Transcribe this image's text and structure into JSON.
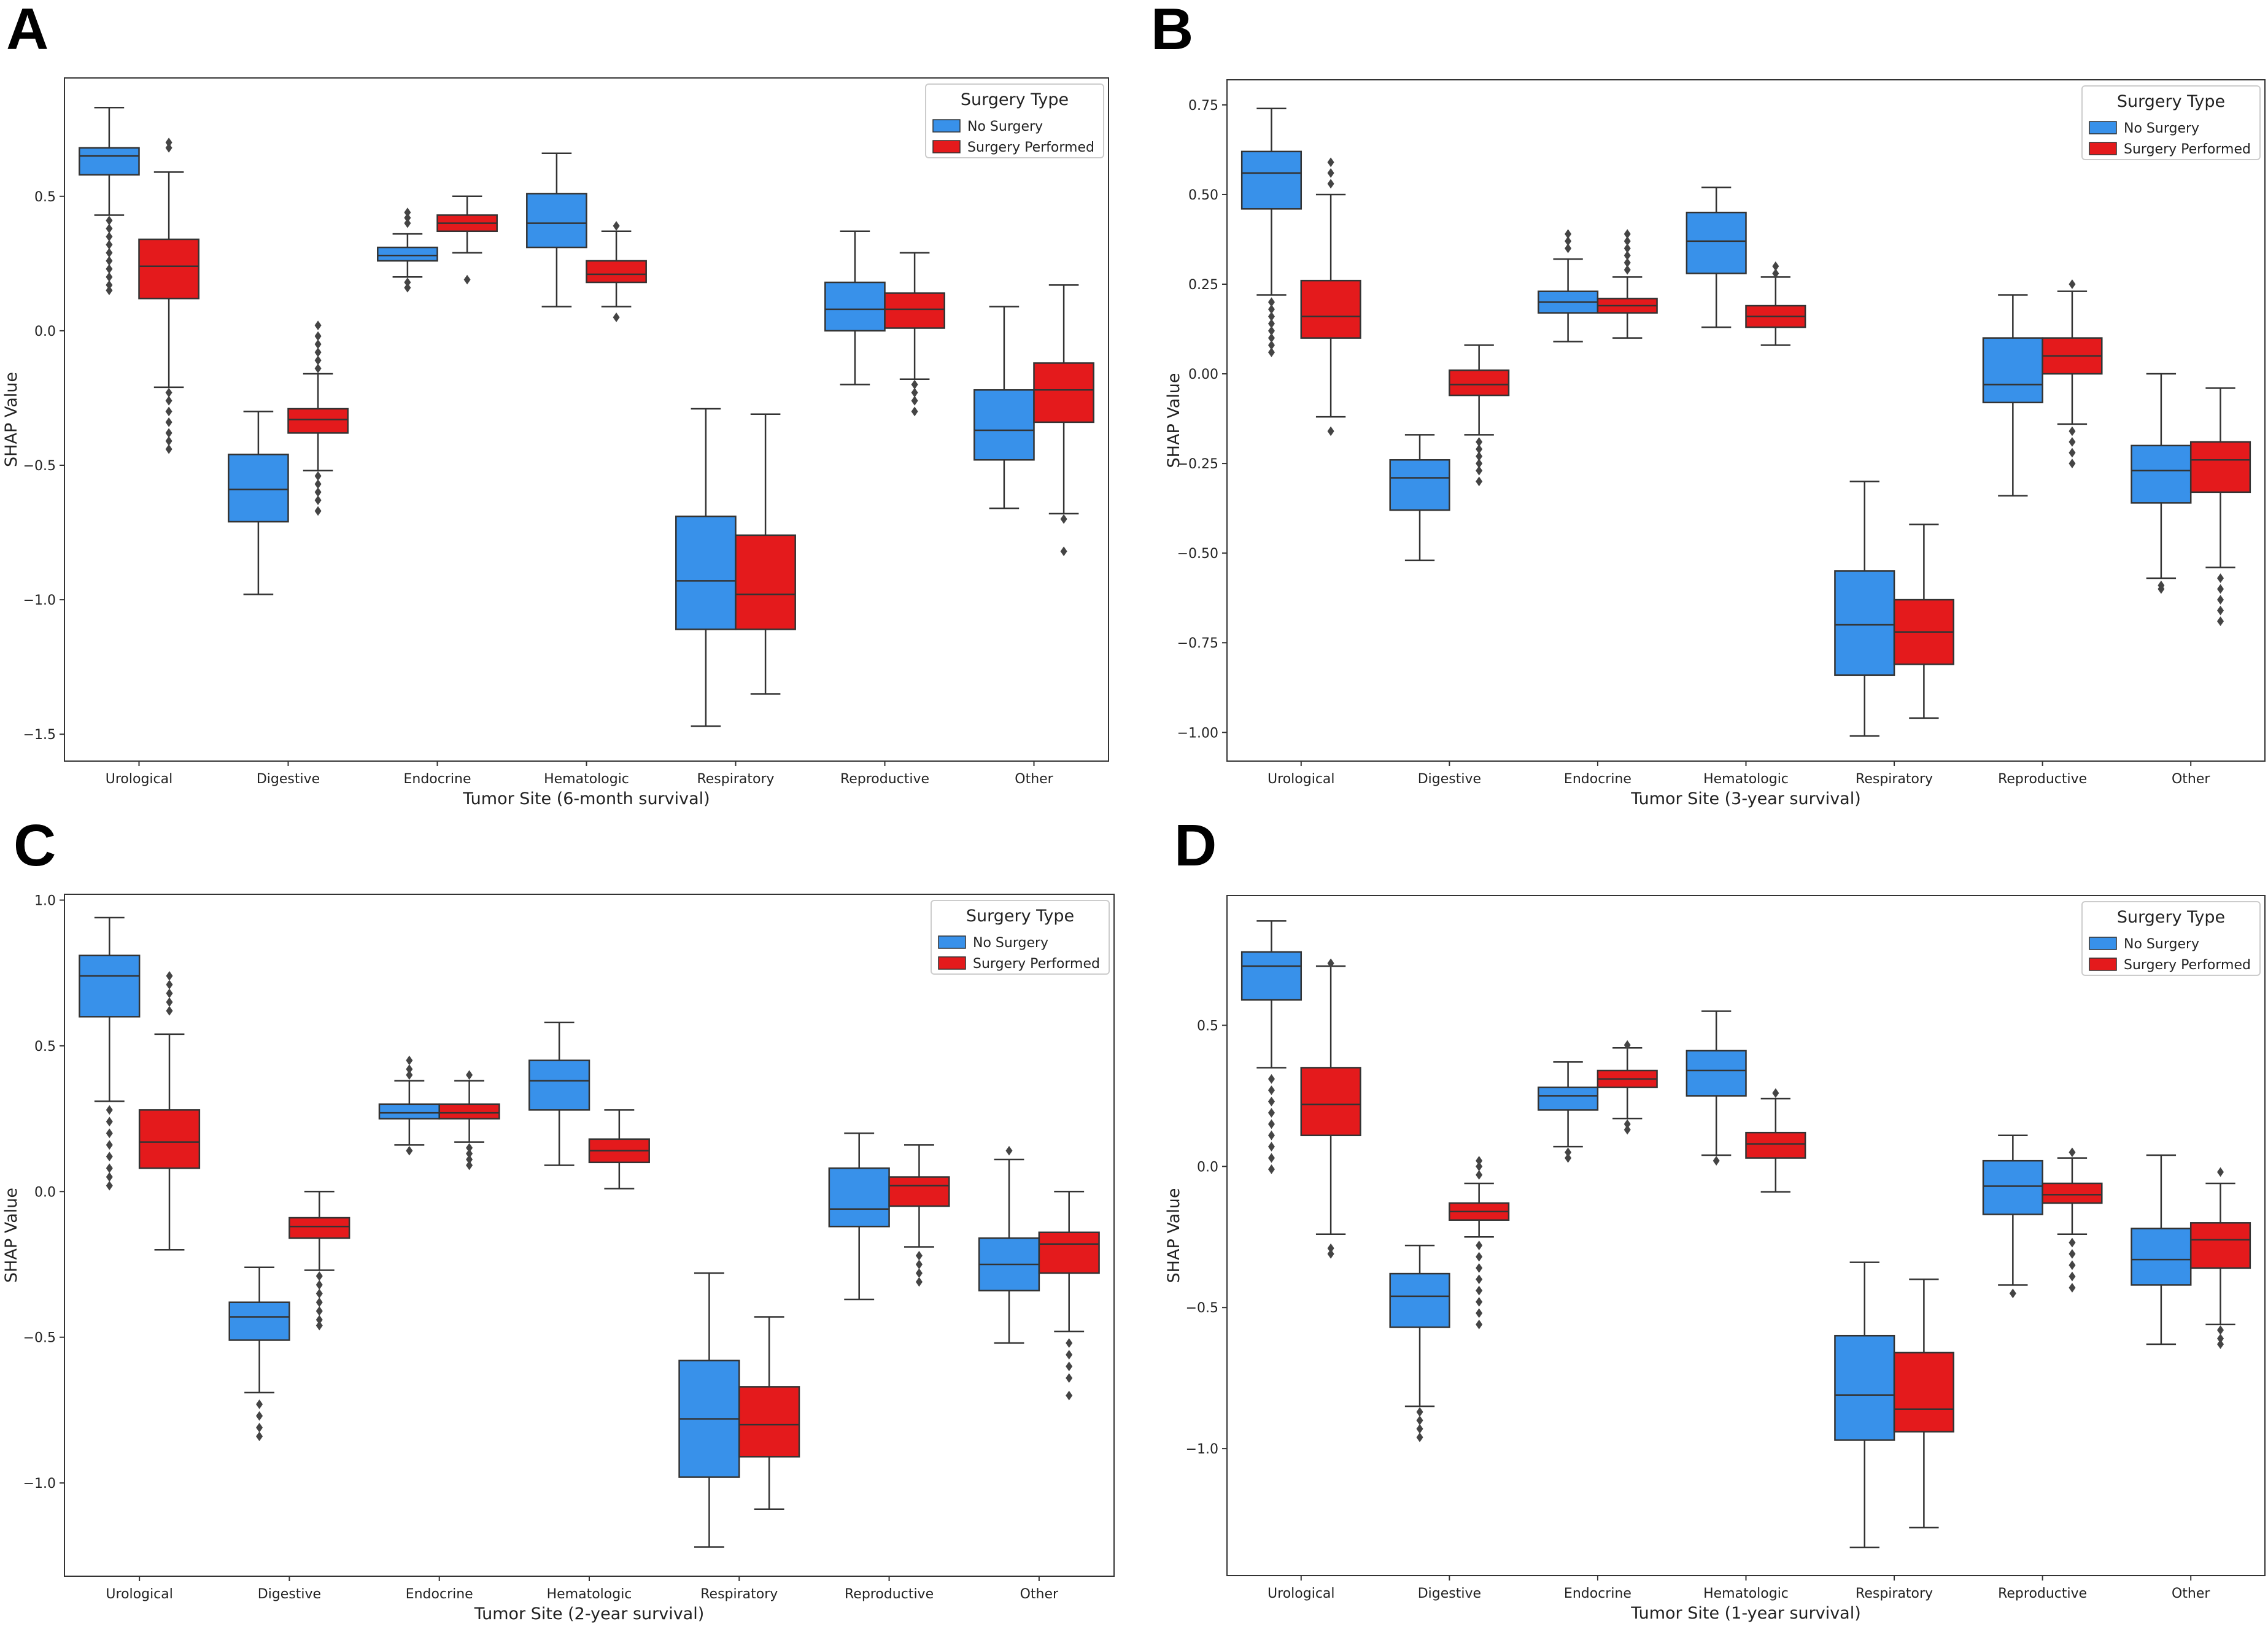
{
  "colors": {
    "no_surgery": "#3891ea",
    "surgery_performed": "#e41a1c",
    "line": "#333333",
    "frame": "#333333"
  },
  "chart_data": [
    {
      "panel": "A",
      "type": "box",
      "xlabel": "Tumor Site (6-month survival)",
      "ylabel": "SHAP Value",
      "ylim": [
        -1.6,
        0.94
      ],
      "yticks": [
        0.5,
        0.0,
        -0.5,
        -1.0,
        -1.5
      ],
      "ytick_labels": [
        "0.5",
        "0.0",
        "−0.5",
        "−1.0",
        "−1.5"
      ],
      "categories": [
        "Urological",
        "Digestive",
        "Endocrine",
        "Hematologic",
        "Respiratory",
        "Reproductive",
        "Other"
      ],
      "legend": {
        "title": "Surgery Type",
        "entries": [
          "No Surgery",
          "Surgery Performed"
        ]
      },
      "series": [
        {
          "name": "No Surgery",
          "boxes": [
            {
              "whislo": 0.43,
              "q1": 0.58,
              "med": 0.65,
              "q3": 0.68,
              "whishi": 0.83,
              "fliers": [
                0.41,
                0.38,
                0.35,
                0.32,
                0.29,
                0.26,
                0.23,
                0.2,
                0.17,
                0.15
              ]
            },
            {
              "whislo": -0.98,
              "q1": -0.71,
              "med": -0.59,
              "q3": -0.46,
              "whishi": -0.3,
              "fliers": []
            },
            {
              "whislo": 0.2,
              "q1": 0.26,
              "med": 0.28,
              "q3": 0.31,
              "whishi": 0.36,
              "fliers": [
                0.44,
                0.42,
                0.4,
                0.18,
                0.16
              ]
            },
            {
              "whislo": 0.09,
              "q1": 0.31,
              "med": 0.4,
              "q3": 0.51,
              "whishi": 0.66,
              "fliers": []
            },
            {
              "whislo": -1.47,
              "q1": -1.11,
              "med": -0.93,
              "q3": -0.69,
              "whishi": -0.29,
              "fliers": []
            },
            {
              "whislo": -0.2,
              "q1": 0.0,
              "med": 0.08,
              "q3": 0.18,
              "whishi": 0.37,
              "fliers": []
            },
            {
              "whislo": -0.66,
              "q1": -0.48,
              "med": -0.37,
              "q3": -0.22,
              "whishi": 0.09,
              "fliers": []
            }
          ]
        },
        {
          "name": "Surgery Performed",
          "boxes": [
            {
              "whislo": -0.21,
              "q1": 0.12,
              "med": 0.24,
              "q3": 0.34,
              "whishi": 0.59,
              "fliers": [
                0.7,
                0.68,
                -0.23,
                -0.26,
                -0.3,
                -0.34,
                -0.38,
                -0.41,
                -0.44
              ]
            },
            {
              "whislo": -0.52,
              "q1": -0.38,
              "med": -0.33,
              "q3": -0.29,
              "whishi": -0.16,
              "fliers": [
                -0.14,
                -0.11,
                -0.08,
                -0.05,
                -0.02,
                0.02,
                -0.54,
                -0.57,
                -0.6,
                -0.63,
                -0.67
              ]
            },
            {
              "whislo": 0.29,
              "q1": 0.37,
              "med": 0.4,
              "q3": 0.43,
              "whishi": 0.5,
              "fliers": [
                0.19
              ]
            },
            {
              "whislo": 0.09,
              "q1": 0.18,
              "med": 0.21,
              "q3": 0.26,
              "whishi": 0.37,
              "fliers": [
                0.39,
                0.05
              ]
            },
            {
              "whislo": -1.35,
              "q1": -1.11,
              "med": -0.98,
              "q3": -0.76,
              "whishi": -0.31,
              "fliers": []
            },
            {
              "whislo": -0.18,
              "q1": 0.01,
              "med": 0.08,
              "q3": 0.14,
              "whishi": 0.29,
              "fliers": [
                -0.2,
                -0.23,
                -0.26,
                -0.3
              ]
            },
            {
              "whislo": -0.68,
              "q1": -0.34,
              "med": -0.22,
              "q3": -0.12,
              "whishi": 0.17,
              "fliers": [
                -0.7,
                -0.82
              ]
            }
          ]
        }
      ]
    },
    {
      "panel": "B",
      "type": "box",
      "xlabel": "Tumor Site (3-year survival)",
      "ylabel": "SHAP Value",
      "ylim": [
        -1.08,
        0.82
      ],
      "yticks": [
        0.75,
        0.5,
        0.25,
        0.0,
        -0.25,
        -0.5,
        -0.75,
        -1.0
      ],
      "ytick_labels": [
        "0.75",
        "0.50",
        "0.25",
        "0.00",
        "−0.25",
        "−0.50",
        "−0.75",
        "−1.00"
      ],
      "categories": [
        "Urological",
        "Digestive",
        "Endocrine",
        "Hematologic",
        "Respiratory",
        "Reproductive",
        "Other"
      ],
      "legend": {
        "title": "Surgery Type",
        "entries": [
          "No Surgery",
          "Surgery Performed"
        ]
      },
      "series": [
        {
          "name": "No Surgery",
          "boxes": [
            {
              "whislo": 0.22,
              "q1": 0.46,
              "med": 0.56,
              "q3": 0.62,
              "whishi": 0.74,
              "fliers": [
                0.2,
                0.18,
                0.16,
                0.14,
                0.12,
                0.1,
                0.08,
                0.06
              ]
            },
            {
              "whislo": -0.52,
              "q1": -0.38,
              "med": -0.29,
              "q3": -0.24,
              "whishi": -0.17,
              "fliers": []
            },
            {
              "whislo": 0.09,
              "q1": 0.17,
              "med": 0.2,
              "q3": 0.23,
              "whishi": 0.32,
              "fliers": [
                0.39,
                0.37,
                0.35
              ]
            },
            {
              "whislo": 0.13,
              "q1": 0.28,
              "med": 0.37,
              "q3": 0.45,
              "whishi": 0.52,
              "fliers": []
            },
            {
              "whislo": -1.01,
              "q1": -0.84,
              "med": -0.7,
              "q3": -0.55,
              "whishi": -0.3,
              "fliers": []
            },
            {
              "whislo": -0.34,
              "q1": -0.08,
              "med": -0.03,
              "q3": 0.1,
              "whishi": 0.22,
              "fliers": []
            },
            {
              "whislo": -0.57,
              "q1": -0.36,
              "med": -0.27,
              "q3": -0.2,
              "whishi": 0.0,
              "fliers": [
                -0.59,
                -0.6
              ]
            }
          ]
        },
        {
          "name": "Surgery Performed",
          "boxes": [
            {
              "whislo": -0.12,
              "q1": 0.1,
              "med": 0.16,
              "q3": 0.26,
              "whishi": 0.5,
              "fliers": [
                0.59,
                0.56,
                0.53,
                -0.16
              ]
            },
            {
              "whislo": -0.17,
              "q1": -0.06,
              "med": -0.03,
              "q3": 0.01,
              "whishi": 0.08,
              "fliers": [
                -0.19,
                -0.21,
                -0.23,
                -0.25,
                -0.27,
                -0.3
              ]
            },
            {
              "whislo": 0.1,
              "q1": 0.17,
              "med": 0.19,
              "q3": 0.21,
              "whishi": 0.27,
              "fliers": [
                0.39,
                0.37,
                0.35,
                0.33,
                0.31,
                0.29
              ]
            },
            {
              "whislo": 0.08,
              "q1": 0.13,
              "med": 0.16,
              "q3": 0.19,
              "whishi": 0.27,
              "fliers": [
                0.3,
                0.28
              ]
            },
            {
              "whislo": -0.96,
              "q1": -0.81,
              "med": -0.72,
              "q3": -0.63,
              "whishi": -0.42,
              "fliers": []
            },
            {
              "whislo": -0.14,
              "q1": 0.0,
              "med": 0.05,
              "q3": 0.1,
              "whishi": 0.23,
              "fliers": [
                0.25,
                -0.16,
                -0.19,
                -0.22,
                -0.25
              ]
            },
            {
              "whislo": -0.54,
              "q1": -0.33,
              "med": -0.24,
              "q3": -0.19,
              "whishi": -0.04,
              "fliers": [
                -0.57,
                -0.6,
                -0.63,
                -0.66,
                -0.69
              ]
            }
          ]
        }
      ]
    },
    {
      "panel": "C",
      "type": "box",
      "xlabel": "Tumor Site (2-year survival)",
      "ylabel": "SHAP Value",
      "ylim": [
        -1.32,
        1.02
      ],
      "yticks": [
        1.0,
        0.5,
        0.0,
        -0.5,
        -1.0
      ],
      "ytick_labels": [
        "1.0",
        "0.5",
        "0.0",
        "−0.5",
        "−1.0"
      ],
      "categories": [
        "Urological",
        "Digestive",
        "Endocrine",
        "Hematologic",
        "Respiratory",
        "Reproductive",
        "Other"
      ],
      "legend": {
        "title": "Surgery Type",
        "entries": [
          "No Surgery",
          "Surgery Performed"
        ]
      },
      "series": [
        {
          "name": "No Surgery",
          "boxes": [
            {
              "whislo": 0.31,
              "q1": 0.6,
              "med": 0.74,
              "q3": 0.81,
              "whishi": 0.94,
              "fliers": [
                0.28,
                0.24,
                0.2,
                0.16,
                0.12,
                0.08,
                0.05,
                0.02
              ]
            },
            {
              "whislo": -0.69,
              "q1": -0.51,
              "med": -0.43,
              "q3": -0.38,
              "whishi": -0.26,
              "fliers": [
                -0.73,
                -0.77,
                -0.81,
                -0.84
              ]
            },
            {
              "whislo": 0.16,
              "q1": 0.25,
              "med": 0.27,
              "q3": 0.3,
              "whishi": 0.38,
              "fliers": [
                0.45,
                0.42,
                0.4,
                0.14
              ]
            },
            {
              "whislo": 0.09,
              "q1": 0.28,
              "med": 0.38,
              "q3": 0.45,
              "whishi": 0.58,
              "fliers": []
            },
            {
              "whislo": -1.22,
              "q1": -0.98,
              "med": -0.78,
              "q3": -0.58,
              "whishi": -0.28,
              "fliers": []
            },
            {
              "whislo": -0.37,
              "q1": -0.12,
              "med": -0.06,
              "q3": 0.08,
              "whishi": 0.2,
              "fliers": []
            },
            {
              "whislo": -0.52,
              "q1": -0.34,
              "med": -0.25,
              "q3": -0.16,
              "whishi": 0.11,
              "fliers": [
                0.14
              ]
            }
          ]
        },
        {
          "name": "Surgery Performed",
          "boxes": [
            {
              "whislo": -0.2,
              "q1": 0.08,
              "med": 0.17,
              "q3": 0.28,
              "whishi": 0.54,
              "fliers": [
                0.74,
                0.71,
                0.68,
                0.65,
                0.62
              ]
            },
            {
              "whislo": -0.27,
              "q1": -0.16,
              "med": -0.12,
              "q3": -0.09,
              "whishi": 0.0,
              "fliers": [
                -0.29,
                -0.32,
                -0.35,
                -0.38,
                -0.41,
                -0.44,
                -0.46
              ]
            },
            {
              "whislo": 0.17,
              "q1": 0.25,
              "med": 0.27,
              "q3": 0.3,
              "whishi": 0.38,
              "fliers": [
                0.4,
                0.15,
                0.13,
                0.11,
                0.09
              ]
            },
            {
              "whislo": 0.01,
              "q1": 0.1,
              "med": 0.14,
              "q3": 0.18,
              "whishi": 0.28,
              "fliers": []
            },
            {
              "whislo": -1.09,
              "q1": -0.91,
              "med": -0.8,
              "q3": -0.67,
              "whishi": -0.43,
              "fliers": []
            },
            {
              "whislo": -0.19,
              "q1": -0.05,
              "med": 0.02,
              "q3": 0.05,
              "whishi": 0.16,
              "fliers": [
                -0.22,
                -0.25,
                -0.28,
                -0.31
              ]
            },
            {
              "whislo": -0.48,
              "q1": -0.28,
              "med": -0.18,
              "q3": -0.14,
              "whishi": 0.0,
              "fliers": [
                -0.52,
                -0.56,
                -0.6,
                -0.64,
                -0.7
              ]
            }
          ]
        }
      ]
    },
    {
      "panel": "D",
      "type": "box",
      "xlabel": "Tumor Site (1-year survival)",
      "ylabel": "SHAP Value",
      "ylim": [
        -1.45,
        0.96
      ],
      "yticks": [
        0.5,
        0.0,
        -0.5,
        -1.0
      ],
      "ytick_labels": [
        "0.5",
        "0.0",
        "−0.5",
        "−1.0"
      ],
      "categories": [
        "Urological",
        "Digestive",
        "Endocrine",
        "Hematologic",
        "Respiratory",
        "Reproductive",
        "Other"
      ],
      "legend": {
        "title": "Surgery Type",
        "entries": [
          "No Surgery",
          "Surgery Performed"
        ]
      },
      "series": [
        {
          "name": "No Surgery",
          "boxes": [
            {
              "whislo": 0.35,
              "q1": 0.59,
              "med": 0.71,
              "q3": 0.76,
              "whishi": 0.87,
              "fliers": [
                0.31,
                0.27,
                0.23,
                0.19,
                0.15,
                0.11,
                0.07,
                0.03,
                -0.01
              ]
            },
            {
              "whislo": -0.85,
              "q1": -0.57,
              "med": -0.46,
              "q3": -0.38,
              "whishi": -0.28,
              "fliers": [
                -0.87,
                -0.9,
                -0.93,
                -0.96
              ]
            },
            {
              "whislo": 0.07,
              "q1": 0.2,
              "med": 0.25,
              "q3": 0.28,
              "whishi": 0.37,
              "fliers": [
                0.05,
                0.03
              ]
            },
            {
              "whislo": 0.04,
              "q1": 0.25,
              "med": 0.34,
              "q3": 0.41,
              "whishi": 0.55,
              "fliers": [
                0.02
              ]
            },
            {
              "whislo": -1.35,
              "q1": -0.97,
              "med": -0.81,
              "q3": -0.6,
              "whishi": -0.34,
              "fliers": []
            },
            {
              "whislo": -0.42,
              "q1": -0.17,
              "med": -0.07,
              "q3": 0.02,
              "whishi": 0.11,
              "fliers": [
                -0.45
              ]
            },
            {
              "whislo": -0.63,
              "q1": -0.42,
              "med": -0.33,
              "q3": -0.22,
              "whishi": 0.04,
              "fliers": []
            }
          ]
        },
        {
          "name": "Surgery Performed",
          "boxes": [
            {
              "whislo": -0.24,
              "q1": 0.11,
              "med": 0.22,
              "q3": 0.35,
              "whishi": 0.71,
              "fliers": [
                0.72,
                -0.29,
                -0.31
              ]
            },
            {
              "whislo": -0.25,
              "q1": -0.19,
              "med": -0.16,
              "q3": -0.13,
              "whishi": -0.06,
              "fliers": [
                -0.03,
                0.0,
                0.02,
                -0.28,
                -0.32,
                -0.36,
                -0.4,
                -0.44,
                -0.48,
                -0.52,
                -0.56
              ]
            },
            {
              "whislo": 0.17,
              "q1": 0.28,
              "med": 0.31,
              "q3": 0.34,
              "whishi": 0.42,
              "fliers": [
                0.43,
                0.15,
                0.13
              ]
            },
            {
              "whislo": -0.09,
              "q1": 0.03,
              "med": 0.08,
              "q3": 0.12,
              "whishi": 0.24,
              "fliers": [
                0.26
              ]
            },
            {
              "whislo": -1.28,
              "q1": -0.94,
              "med": -0.86,
              "q3": -0.66,
              "whishi": -0.4,
              "fliers": []
            },
            {
              "whislo": -0.24,
              "q1": -0.13,
              "med": -0.1,
              "q3": -0.06,
              "whishi": 0.03,
              "fliers": [
                0.05,
                -0.27,
                -0.31,
                -0.35,
                -0.39,
                -0.43
              ]
            },
            {
              "whislo": -0.56,
              "q1": -0.36,
              "med": -0.26,
              "q3": -0.2,
              "whishi": -0.06,
              "fliers": [
                -0.02,
                -0.58,
                -0.61,
                -0.63
              ]
            }
          ]
        }
      ]
    }
  ]
}
